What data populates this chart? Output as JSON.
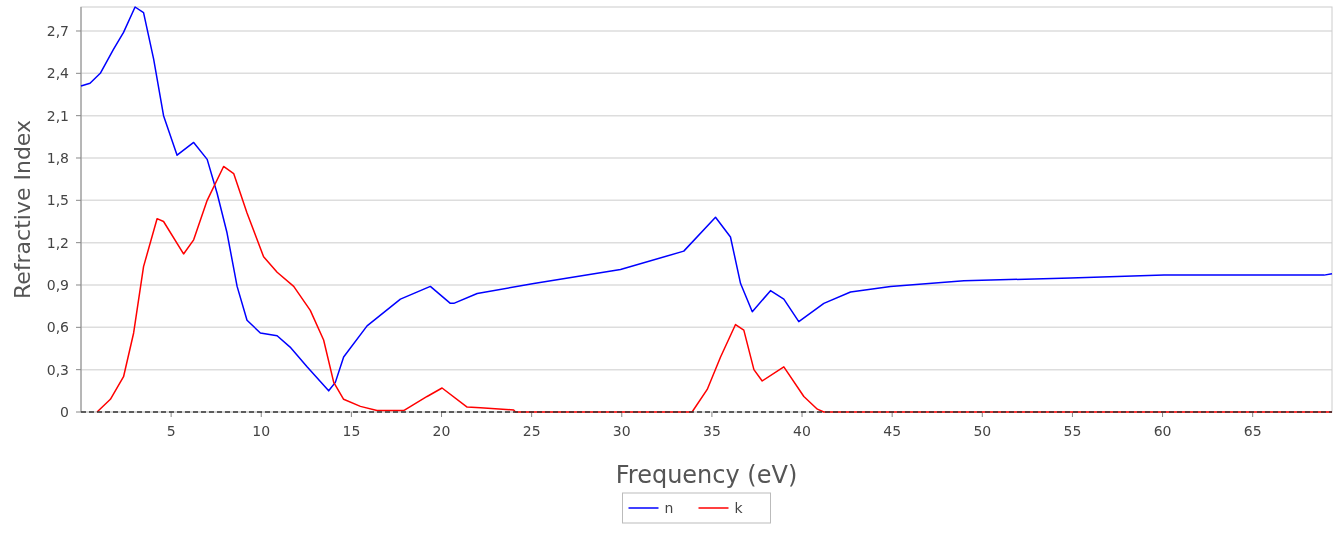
{
  "chart_data": {
    "type": "line",
    "xlabel": "Frequency (eV)",
    "ylabel": "Refractive Index",
    "xlim": [
      0,
      69.4
    ],
    "ylim": [
      0,
      2.87
    ],
    "xticks": [
      5,
      10,
      15,
      20,
      25,
      30,
      35,
      40,
      45,
      50,
      55,
      60,
      65
    ],
    "yticks": [
      0,
      {
        "value": 0.3,
        "label": "0,3"
      },
      {
        "value": 0.6,
        "label": "0,6"
      },
      {
        "value": 0.9,
        "label": "0,9"
      },
      {
        "value": 1.2,
        "label": "1,2"
      },
      {
        "value": 1.5,
        "label": "1,5"
      },
      {
        "value": 1.8,
        "label": "1,8"
      },
      {
        "value": 2.1,
        "label": "2,1"
      },
      {
        "value": 2.4,
        "label": "2,4"
      },
      {
        "value": 2.7,
        "label": "2,7"
      }
    ],
    "grid": "y",
    "legend": "bottom",
    "marker": "none",
    "line_style": "solid",
    "ref_lines": [
      {
        "axis": "y",
        "value": 0,
        "color": "#333333",
        "line_style": "dashed"
      }
    ],
    "series": [
      {
        "name": "n",
        "color": "#0000ff",
        "x": [
          0,
          0.5,
          1.07,
          1.8,
          2.36,
          3.0,
          3.47,
          4.03,
          4.58,
          5.33,
          6.25,
          7.0,
          7.55,
          8.1,
          8.66,
          9.21,
          9.95,
          10.88,
          11.6,
          12.54,
          13.74,
          14.11,
          14.57,
          15.87,
          17.72,
          19.38,
          20.49,
          20.68,
          21.98,
          25.12,
          29.93,
          33.44,
          35.2,
          36.03,
          36.59,
          37.24,
          38.25,
          38.99,
          39.82,
          41.21,
          42.69,
          44.91,
          48.98,
          54.9,
          60.08,
          68.96,
          69.4
        ],
        "values": [
          2.31,
          2.33,
          2.4,
          2.57,
          2.69,
          2.87,
          2.83,
          2.5,
          2.1,
          1.82,
          1.91,
          1.79,
          1.55,
          1.27,
          0.89,
          0.65,
          0.56,
          0.54,
          0.46,
          0.32,
          0.15,
          0.21,
          0.39,
          0.61,
          0.8,
          0.89,
          0.77,
          0.77,
          0.84,
          0.91,
          1.01,
          1.14,
          1.38,
          1.24,
          0.91,
          0.71,
          0.86,
          0.8,
          0.64,
          0.77,
          0.85,
          0.89,
          0.93,
          0.95,
          0.97,
          0.97,
          0.98
        ]
      },
      {
        "name": "k",
        "color": "#ff0000",
        "x": [
          0.89,
          1.63,
          2.36,
          2.92,
          3.47,
          4.22,
          4.58,
          5.69,
          6.25,
          7.0,
          7.91,
          8.47,
          9.21,
          10.13,
          10.88,
          11.8,
          12.72,
          13.46,
          14.02,
          14.57,
          15.5,
          16.42,
          17.9,
          19.2,
          20.03,
          21.42,
          22.16,
          24.0,
          24.1,
          33.9,
          34.74,
          35.48,
          36.31,
          36.77,
          37.33,
          37.79,
          38.99,
          40.1,
          40.85,
          41.21,
          69.4
        ],
        "values": [
          0,
          0.09,
          0.25,
          0.56,
          1.03,
          1.37,
          1.35,
          1.12,
          1.22,
          1.5,
          1.74,
          1.69,
          1.41,
          1.1,
          0.99,
          0.89,
          0.72,
          0.51,
          0.21,
          0.09,
          0.04,
          0.01,
          0.01,
          0.11,
          0.17,
          0.035,
          0.03,
          0.015,
          0,
          0,
          0.16,
          0.39,
          0.62,
          0.58,
          0.3,
          0.22,
          0.32,
          0.11,
          0.02,
          0,
          0
        ]
      }
    ]
  }
}
